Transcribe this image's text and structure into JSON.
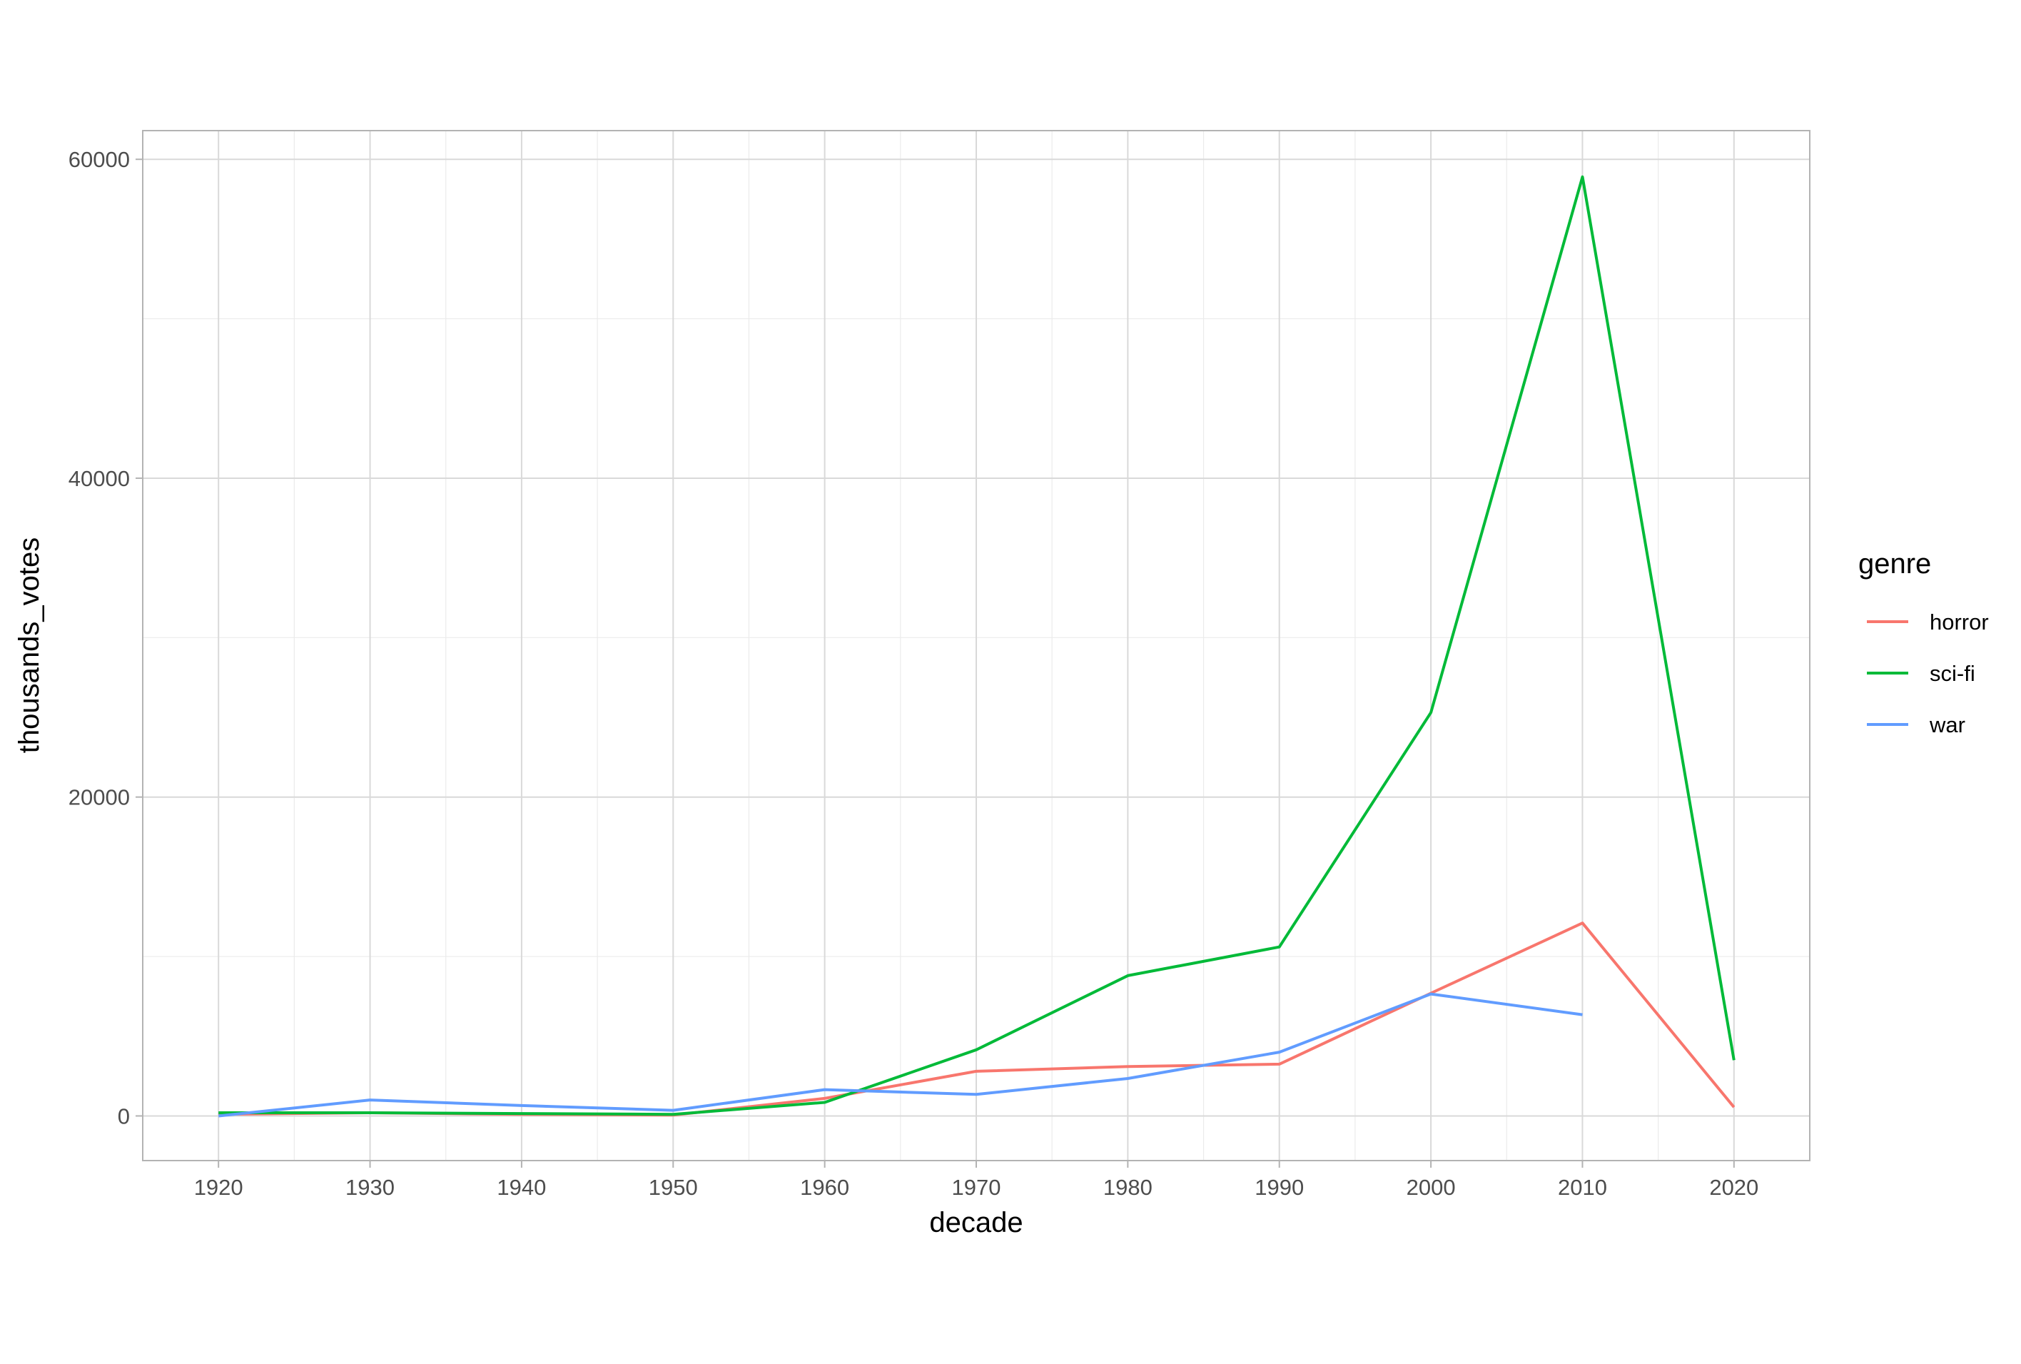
{
  "chart_data": {
    "type": "line",
    "xlabel": "decade",
    "ylabel": "thousands_votes",
    "x_ticks": [
      "1920",
      "1930",
      "1940",
      "1950",
      "1960",
      "1970",
      "1980",
      "1990",
      "2000",
      "2010",
      "2020"
    ],
    "y_ticks": [
      "0",
      "20000",
      "40000",
      "60000"
    ],
    "xlim": [
      1915,
      2025
    ],
    "ylim": [
      -2800,
      61800
    ],
    "grid": true,
    "legend": {
      "title": "genre",
      "placement": "right"
    },
    "series": [
      {
        "name": "horror",
        "color": "#F8766D",
        "x": [
          1920,
          1930,
          1940,
          1950,
          1960,
          1970,
          1980,
          1990,
          2000,
          2010,
          2020
        ],
        "values": [
          100,
          200,
          100,
          50,
          1100,
          2800,
          3100,
          3250,
          7700,
          12100,
          550
        ]
      },
      {
        "name": "sci-fi",
        "color": "#00BA38",
        "x": [
          1920,
          1930,
          1940,
          1950,
          1960,
          1970,
          1980,
          1990,
          2000,
          2010,
          2020
        ],
        "values": [
          200,
          200,
          150,
          100,
          850,
          4150,
          8800,
          10600,
          25300,
          58900,
          3500
        ]
      },
      {
        "name": "war",
        "color": "#619CFF",
        "x": [
          1920,
          1930,
          1940,
          1950,
          1960,
          1970,
          1980,
          1990,
          2000,
          2010
        ],
        "values": [
          0,
          1000,
          650,
          350,
          1650,
          1350,
          2350,
          4000,
          7650,
          6350
        ]
      }
    ]
  }
}
